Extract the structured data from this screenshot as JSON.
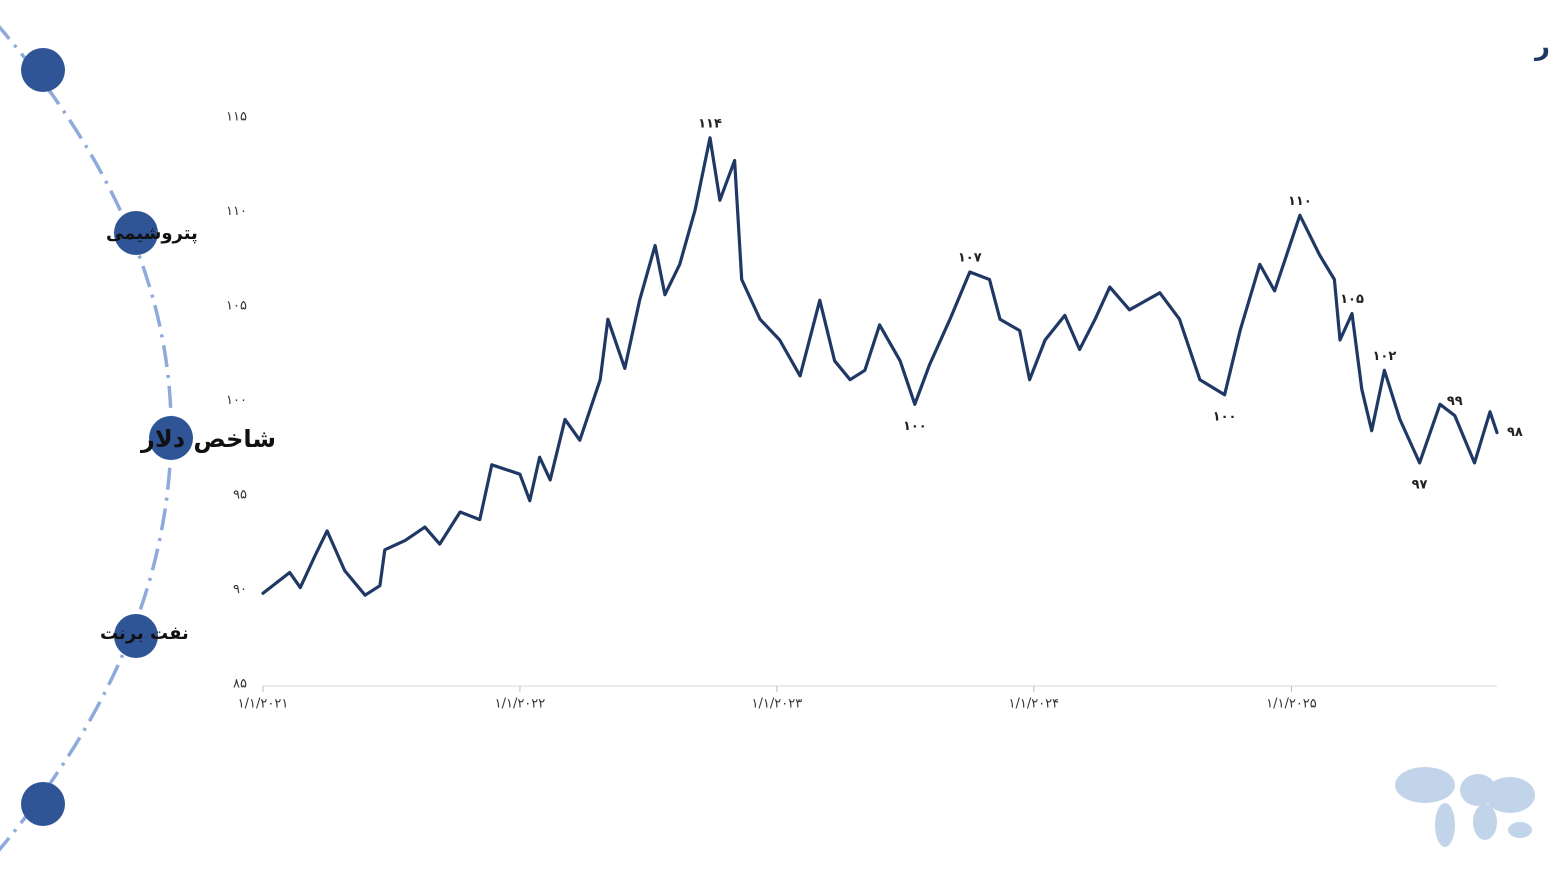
{
  "nav": [
    "پتروشیمی",
    "شاخص دلار",
    "نفت برنت"
  ],
  "chart_data": {
    "type": "line",
    "title": "شاخص دلار",
    "color": "#1f3864",
    "x": [
      "2021-01-01",
      "2021-02-08",
      "2021-02-23",
      "2021-03-16",
      "2021-04-02",
      "2021-04-27",
      "2021-05-26",
      "2021-06-16",
      "2021-06-23",
      "2021-07-22",
      "2021-08-19",
      "2021-09-09",
      "2021-10-08",
      "2021-11-05",
      "2021-11-22",
      "2022-01-01",
      "2022-01-15",
      "2022-01-29",
      "2022-02-13",
      "2022-03-06",
      "2022-03-27",
      "2022-04-25",
      "2022-05-06",
      "2022-05-30",
      "2022-06-20",
      "2022-07-12",
      "2022-07-26",
      "2022-08-16",
      "2022-09-07",
      "2022-09-28",
      "2022-10-12",
      "2022-11-02",
      "2022-11-12",
      "2022-12-08",
      "2023-01-05",
      "2023-02-03",
      "2023-03-03",
      "2023-03-24",
      "2023-04-15",
      "2023-05-06",
      "2023-05-27",
      "2023-06-25",
      "2023-07-16",
      "2023-08-06",
      "2023-09-04",
      "2023-10-02",
      "2023-10-30",
      "2023-11-14",
      "2023-12-12",
      "2023-12-26",
      "2024-01-17",
      "2024-02-14",
      "2024-03-06",
      "2024-03-28",
      "2024-04-18",
      "2024-05-16",
      "2024-06-28",
      "2024-07-26",
      "2024-08-24",
      "2024-09-28",
      "2024-10-20",
      "2024-11-17",
      "2024-12-08",
      "2025-01-13",
      "2025-02-10",
      "2025-03-03",
      "2025-03-11",
      "2025-03-28",
      "2025-04-11",
      "2025-04-25",
      "2025-05-13",
      "2025-06-04",
      "2025-07-02",
      "2025-07-31",
      "2025-08-21",
      "2025-09-18",
      "2025-10-10",
      "2025-10-20"
    ],
    "values": [
      89.8,
      90.9,
      90.1,
      91.8,
      93.1,
      91.0,
      89.7,
      90.2,
      92.1,
      92.6,
      93.3,
      92.4,
      94.1,
      93.7,
      96.6,
      96.1,
      94.7,
      97.0,
      95.8,
      99.0,
      97.9,
      101.1,
      104.3,
      101.7,
      105.3,
      108.2,
      105.6,
      107.2,
      110.1,
      113.9,
      110.6,
      112.7,
      106.4,
      104.3,
      103.2,
      101.3,
      105.3,
      102.1,
      101.1,
      101.6,
      104.0,
      102.1,
      99.8,
      101.9,
      104.3,
      106.8,
      106.4,
      104.3,
      103.7,
      101.1,
      103.2,
      104.5,
      102.7,
      104.3,
      106.0,
      104.8,
      105.7,
      104.3,
      101.1,
      100.3,
      103.7,
      107.2,
      105.8,
      109.8,
      107.7,
      106.4,
      103.2,
      104.6,
      100.6,
      98.4,
      101.6,
      99.0,
      96.7,
      99.8,
      99.2,
      96.7,
      99.4,
      98.3
    ],
    "value_labels": [
      null,
      null,
      null,
      null,
      null,
      null,
      null,
      null,
      null,
      null,
      null,
      null,
      null,
      null,
      null,
      null,
      null,
      null,
      null,
      null,
      null,
      null,
      null,
      null,
      null,
      null,
      null,
      null,
      null,
      "۱۱۴",
      null,
      null,
      null,
      null,
      null,
      null,
      null,
      null,
      null,
      null,
      null,
      null,
      "۱۰۰",
      null,
      null,
      "۱۰۷",
      null,
      null,
      null,
      null,
      null,
      null,
      null,
      null,
      null,
      null,
      null,
      null,
      null,
      "۱۰۰",
      null,
      null,
      null,
      "۱۱۰",
      null,
      null,
      null,
      "۱۰۵",
      null,
      null,
      "۱۰۲",
      null,
      "۹۷",
      null,
      "۹۹",
      null,
      null,
      "۹۸"
    ],
    "xlim": [
      "2021-01-01",
      "2025-10-20"
    ],
    "xticks": [
      {
        "value": "2021-01-01",
        "label": "۱/۱/۲۰۲۱"
      },
      {
        "value": "2022-01-01",
        "label": "۱/۱/۲۰۲۲"
      },
      {
        "value": "2023-01-01",
        "label": "۱/۱/۲۰۲۳"
      },
      {
        "value": "2024-01-01",
        "label": "۱/۱/۲۰۲۴"
      },
      {
        "value": "2025-01-01",
        "label": "۱/۱/۲۰۲۵"
      }
    ],
    "ylim": [
      85,
      115
    ],
    "yticks": [
      {
        "value": 85,
        "label": "۸۵"
      },
      {
        "value": 90,
        "label": "۹۰"
      },
      {
        "value": 95,
        "label": "۹۵"
      },
      {
        "value": 100,
        "label": "۱۰۰"
      },
      {
        "value": 105,
        "label": "۱۰۵"
      },
      {
        "value": 110,
        "label": "۱۱۰"
      },
      {
        "value": 115,
        "label": "۱۱۵"
      }
    ],
    "grid": false
  }
}
